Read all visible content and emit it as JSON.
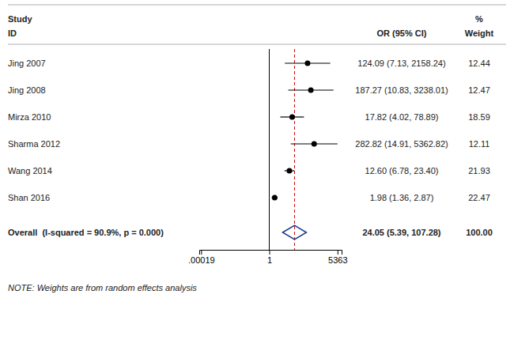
{
  "chart_data": {
    "type": "forest",
    "log": "x",
    "xlim": [
      0.00015,
      9000
    ],
    "xticks": [
      {
        "value": 0.00019,
        "label": ".00019"
      },
      1,
      5363
    ],
    "headers": {
      "study": [
        "Study",
        "ID"
      ],
      "estimate": "OR (95% CI)",
      "weight": [
        "%",
        "Weight"
      ]
    },
    "categories": [
      "Jing 2007",
      "Jing 2008",
      "Mirza 2010",
      "Sharma 2012",
      "Wang 2014",
      "Shan 2016"
    ],
    "values": [
      124.09,
      187.27,
      17.82,
      282.82,
      12.6,
      1.98
    ],
    "ci_low": [
      7.13,
      10.83,
      4.02,
      14.91,
      6.78,
      1.36
    ],
    "ci_high": [
      2158.24,
      3238.01,
      78.89,
      5362.82,
      23.4,
      2.87
    ],
    "value_labels": [
      "124.09 (7.13, 2158.24)",
      "187.27 (10.83, 3238.01)",
      "17.82 (4.02, 78.89)",
      "282.82 (14.91, 5362.82)",
      "12.60 (6.78, 23.40)",
      "1.98 (1.36, 2.87)"
    ],
    "weights": [
      12.44,
      12.47,
      18.59,
      12.11,
      21.93,
      22.47
    ],
    "color": "#000000",
    "overall": {
      "name": "Overall  (I-squared = 90.9%, p = 0.000)",
      "value": 24.05,
      "ci_low": 5.39,
      "ci_high": 107.28,
      "value_label": "24.05 (5.39, 107.28)",
      "weight": 100,
      "weight_label": "100.00",
      "color": "#1a3a8a"
    },
    "reference_lines": [
      {
        "value": 1,
        "color": "#000000"
      },
      {
        "value": 24.05,
        "color": "#cc0000",
        "line_style": "dashed"
      }
    ],
    "note": "NOTE: Weights are from random effects analysis"
  }
}
